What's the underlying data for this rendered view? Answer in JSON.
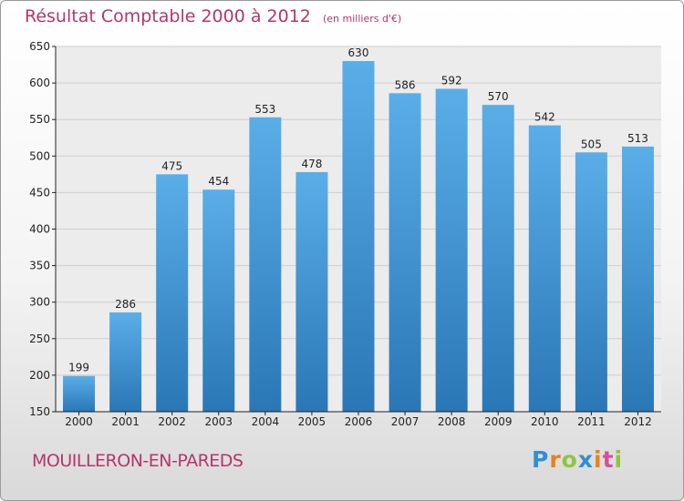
{
  "chart_data": {
    "type": "bar",
    "title": "Résultat Comptable 2000 à 2012",
    "subtitle": "(en milliers d'€)",
    "categories": [
      "2000",
      "2001",
      "2002",
      "2003",
      "2004",
      "2005",
      "2006",
      "2007",
      "2008",
      "2009",
      "2010",
      "2011",
      "2012"
    ],
    "values": [
      199,
      286,
      475,
      454,
      553,
      478,
      630,
      586,
      592,
      570,
      542,
      505,
      513
    ],
    "ylim": [
      150,
      650
    ],
    "yticks": [
      150,
      200,
      250,
      300,
      350,
      400,
      450,
      500,
      550,
      600,
      650
    ],
    "grid": true,
    "xlabel": "",
    "ylabel": "",
    "bar_color_top": "#5aaee8",
    "bar_color_bottom": "#2a77b6"
  },
  "footer": {
    "place": "MOUILLERON-EN-PAREDS"
  },
  "logo": {
    "letters": [
      "P",
      "r",
      "o",
      "x",
      "i",
      "t",
      "i"
    ],
    "colors": [
      "#2f8fd3",
      "#e3841d",
      "#8cc63f",
      "#2f8fd3",
      "#e3841d",
      "#d64f9b",
      "#8cc63f"
    ]
  }
}
